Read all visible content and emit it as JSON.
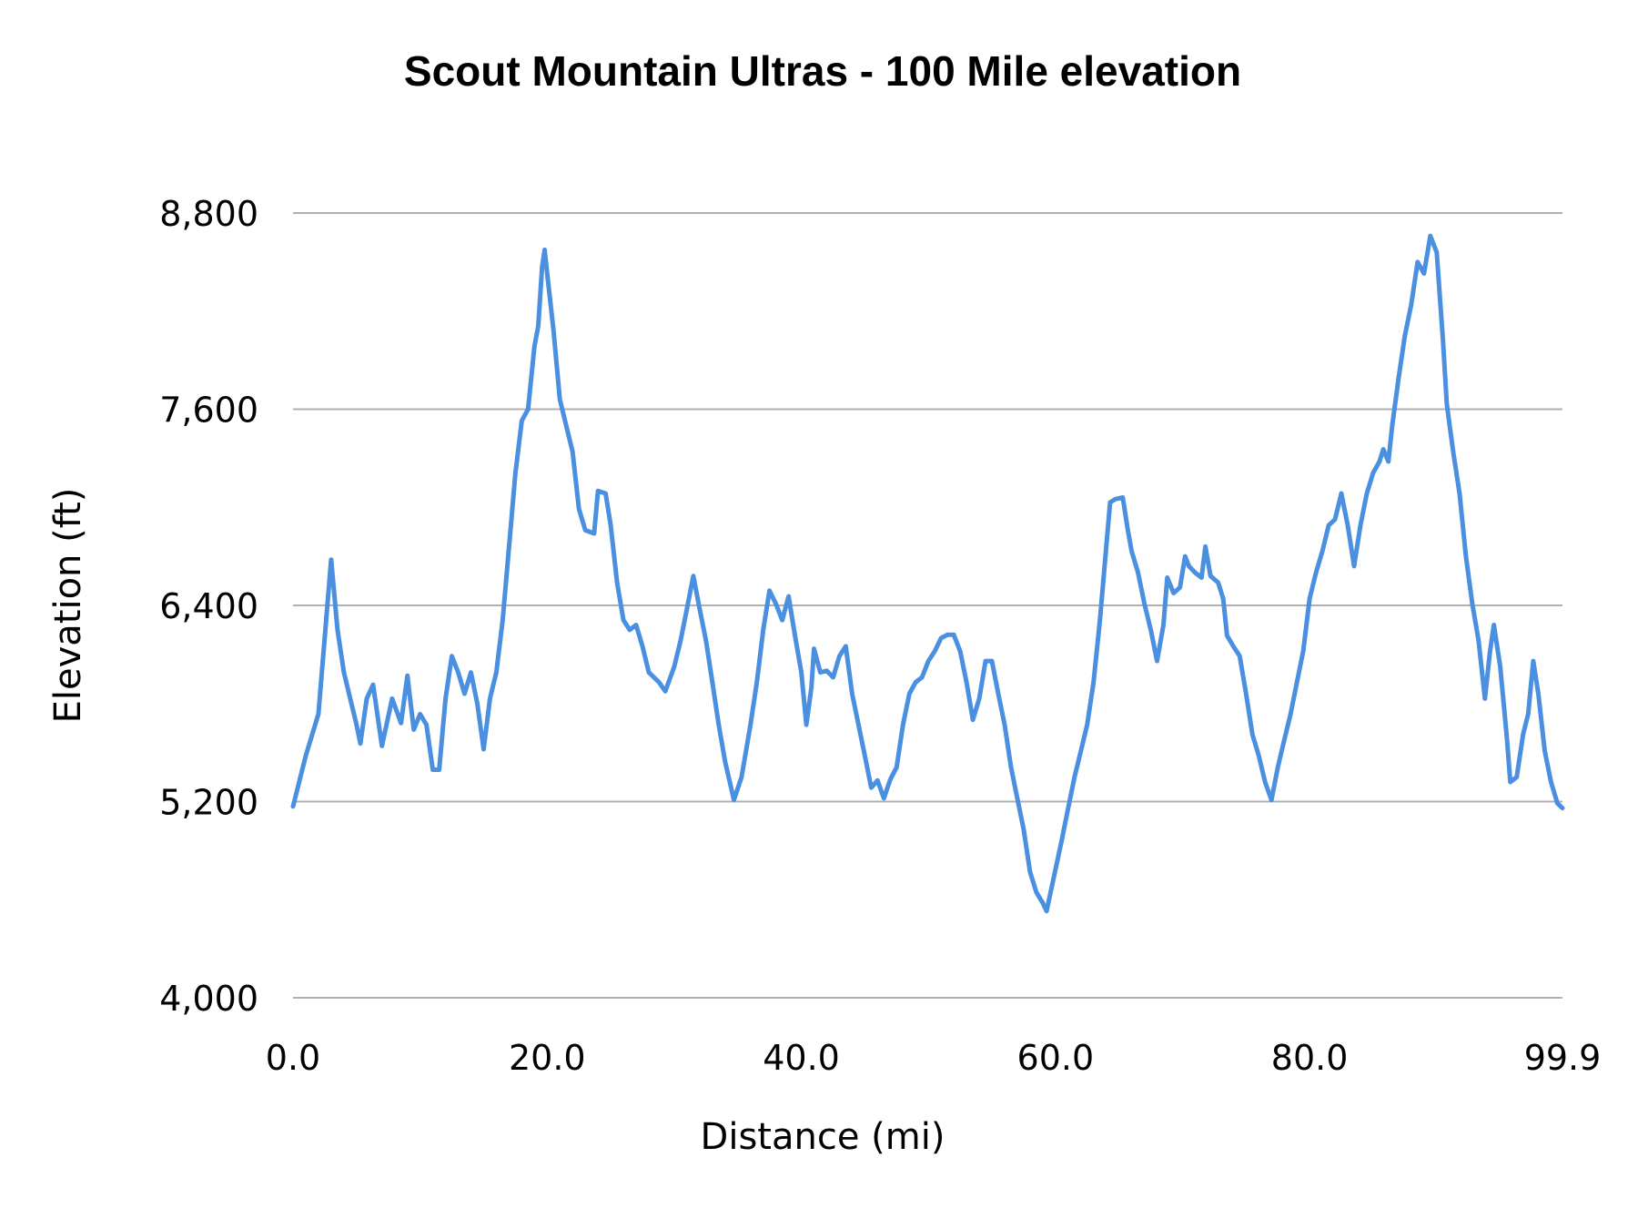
{
  "chart_data": {
    "type": "line",
    "title": "Scout Mountain Ultras - 100 Mile elevation",
    "xlabel": "Distance (mi)",
    "ylabel": "Elevation (ft)",
    "xlim": [
      0,
      99.9
    ],
    "ylim": [
      4000,
      8800
    ],
    "xticks": [
      "0.0",
      "20.0",
      "40.0",
      "60.0",
      "80.0",
      "99.9"
    ],
    "xtick_values": [
      0,
      20,
      40,
      60,
      80,
      99.9
    ],
    "yticks": [
      "4,000",
      "5,200",
      "6,400",
      "7,600",
      "8,800"
    ],
    "ytick_values": [
      4000,
      5200,
      6400,
      7600,
      8800
    ],
    "grid": "horizontal",
    "line_color": "#4a8fe0",
    "grid_color": "#b0b0b0",
    "series": [
      {
        "x": [
          0,
          1,
          2,
          3,
          3.5,
          4,
          5,
          5.3,
          5.8,
          6.3,
          7,
          7.8,
          8.5,
          9,
          9.5,
          10,
          10.5,
          11,
          11.5,
          12,
          12.5,
          13,
          13.5,
          14,
          14.5,
          15,
          15.5,
          16,
          16.5,
          17,
          17.5,
          18,
          18.5,
          19,
          19.3,
          19.6,
          19.8,
          20,
          20.5,
          21,
          21.5,
          22,
          22.5,
          23,
          23.7,
          24,
          24.6,
          25,
          25.5,
          26,
          26.5,
          27,
          27.5,
          28,
          28.8,
          29.3,
          30,
          30.5,
          31,
          31.5,
          32,
          32.5,
          33,
          33.5,
          34,
          34.7,
          35.3,
          36,
          36.5,
          37,
          37.5,
          38,
          38.5,
          39,
          39.5,
          40,
          40.4,
          40.8,
          41,
          41.5,
          42,
          42.5,
          43,
          43.5,
          44,
          44.5,
          45,
          45.5,
          46,
          46.5,
          47,
          47.5,
          48,
          48.5,
          49,
          49.5,
          50,
          50.5,
          51,
          51.5,
          52,
          52.5,
          53,
          53.5,
          54,
          54.5,
          55,
          55.5,
          56,
          56.5,
          57,
          57.5,
          58,
          58.5,
          59,
          59.3,
          59.8,
          60.5,
          61,
          61.5,
          62,
          62.5,
          63,
          63.5,
          64,
          64.3,
          64.7,
          65.3,
          65.7,
          66,
          66.5,
          67,
          67.5,
          68,
          68.5,
          68.8,
          69.3,
          69.8,
          70.2,
          70.5,
          71,
          71.5,
          71.8,
          72.2,
          72.8,
          73.2,
          73.5,
          74,
          74.5,
          75,
          75.5,
          76,
          76.5,
          77,
          77.5,
          78,
          78.5,
          79,
          79.5,
          80,
          80.5,
          81,
          81.5,
          82,
          82.5,
          83,
          83.5,
          84,
          84.5,
          85,
          85.5,
          85.8,
          86.2,
          86.5,
          87,
          87.5,
          88,
          88.5,
          89,
          89.5,
          90,
          90.5,
          90.8,
          91.3,
          91.8,
          92.3,
          92.8,
          93.3,
          93.8,
          94.2,
          94.5,
          95,
          95.5,
          95.8,
          96.3,
          96.8,
          97.2,
          97.6,
          98,
          98.5,
          99,
          99.5,
          99.9
        ],
        "y": [
          5170,
          5480,
          5735,
          6680,
          6250,
          5990,
          5670,
          5555,
          5830,
          5915,
          5540,
          5830,
          5680,
          5970,
          5640,
          5735,
          5670,
          5395,
          5395,
          5830,
          6090,
          5990,
          5860,
          5990,
          5800,
          5520,
          5830,
          5990,
          6310,
          6760,
          7210,
          7530,
          7600,
          7985,
          8110,
          8470,
          8575,
          8430,
          8080,
          7660,
          7500,
          7340,
          6990,
          6860,
          6840,
          7100,
          7085,
          6890,
          6540,
          6310,
          6250,
          6280,
          6150,
          5990,
          5930,
          5875,
          6025,
          6185,
          6380,
          6580,
          6380,
          6185,
          5930,
          5670,
          5445,
          5210,
          5350,
          5670,
          5930,
          6250,
          6490,
          6410,
          6310,
          6455,
          6215,
          5990,
          5670,
          5900,
          6135,
          5990,
          6000,
          5960,
          6090,
          6150,
          5860,
          5670,
          5480,
          5285,
          5330,
          5220,
          5335,
          5410,
          5670,
          5860,
          5930,
          5960,
          6060,
          6120,
          6200,
          6220,
          6220,
          6120,
          5930,
          5700,
          5830,
          6060,
          6060,
          5860,
          5670,
          5410,
          5220,
          5030,
          4770,
          4645,
          4580,
          4530,
          4710,
          4965,
          5160,
          5350,
          5510,
          5670,
          5930,
          6310,
          6760,
          7030,
          7050,
          7060,
          6860,
          6730,
          6600,
          6410,
          6250,
          6060,
          6280,
          6570,
          6475,
          6510,
          6700,
          6640,
          6600,
          6570,
          6760,
          6580,
          6540,
          6440,
          6215,
          6150,
          6090,
          5860,
          5610,
          5480,
          5320,
          5210,
          5410,
          5575,
          5735,
          5930,
          6120,
          6440,
          6600,
          6730,
          6890,
          6925,
          7085,
          6890,
          6640,
          6890,
          7085,
          7210,
          7280,
          7355,
          7280,
          7500,
          7790,
          8050,
          8240,
          8500,
          8430,
          8660,
          8560,
          8020,
          7630,
          7340,
          7085,
          6700,
          6410,
          6185,
          5830,
          6120,
          6280,
          6025,
          5610,
          5320,
          5350,
          5610,
          5735,
          6060,
          5860,
          5510,
          5320,
          5190,
          5160
        ]
      }
    ]
  }
}
